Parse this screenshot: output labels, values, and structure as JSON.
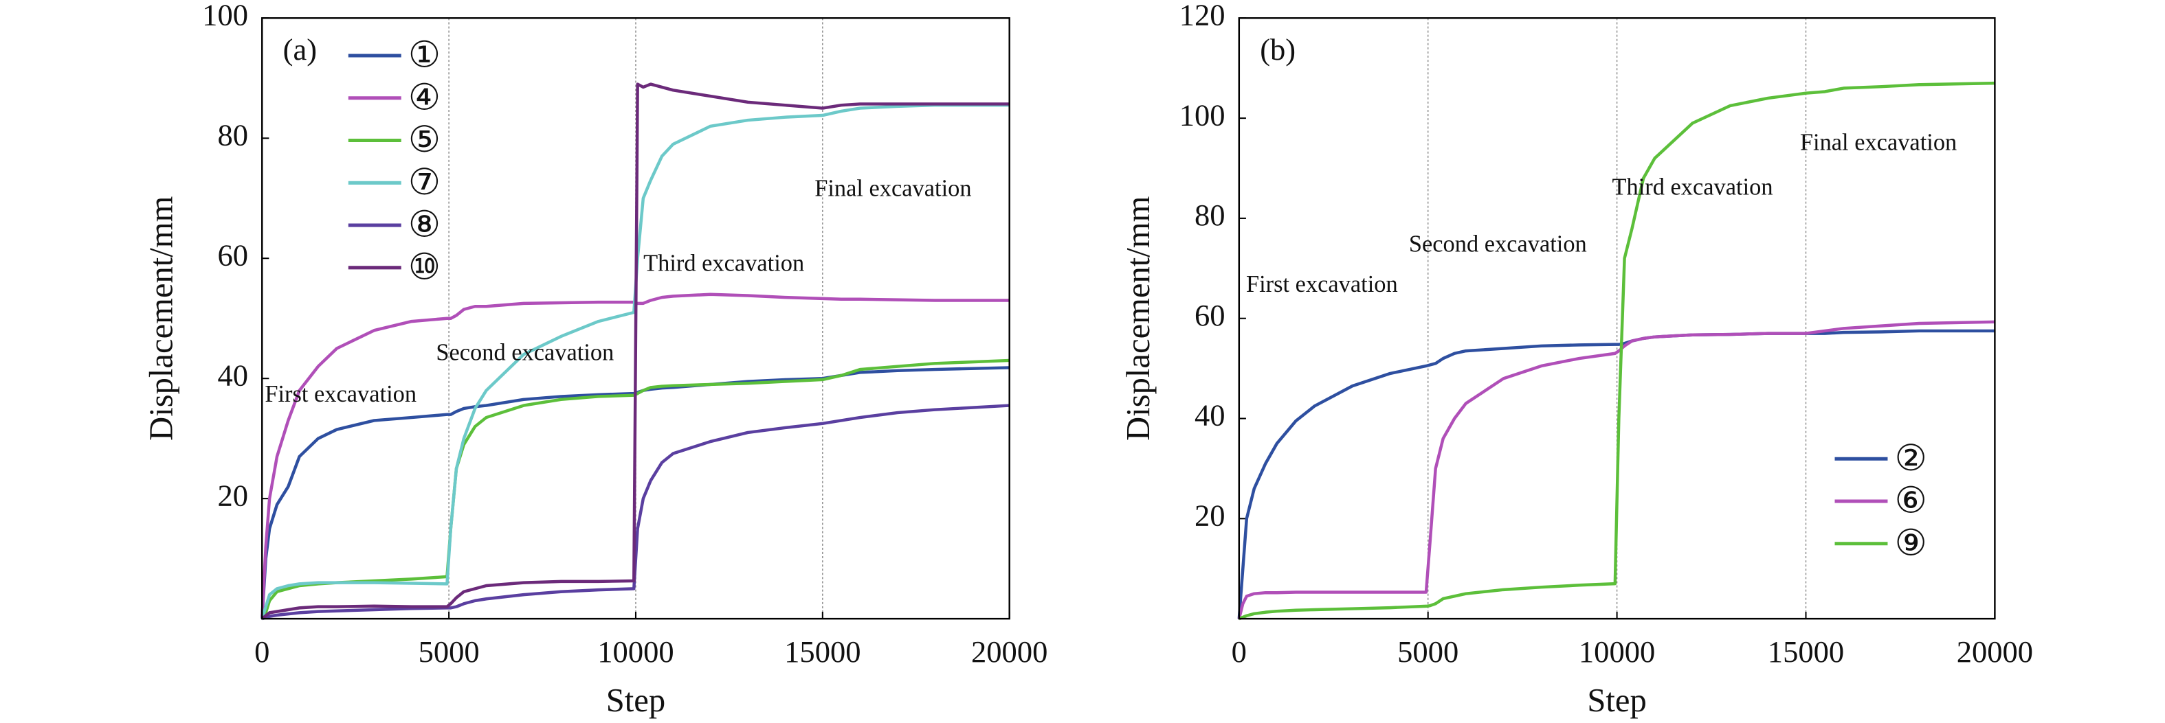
{
  "chart_data": [
    {
      "type": "line",
      "label": "(a)",
      "x_label": "Step",
      "y_label": "Displacement/mm",
      "xlim": [
        0,
        20000
      ],
      "xticks": [
        0,
        5000,
        10000,
        15000,
        20000
      ],
      "ylim": [
        0,
        100
      ],
      "yticks": [
        20,
        40,
        60,
        80,
        100
      ],
      "vlines": [
        5000,
        10000,
        15000
      ],
      "legend": "upper left",
      "annotations": [
        "First excavation",
        "Second excavation",
        "Third excavation",
        "Final excavation"
      ],
      "x": [
        0,
        100,
        200,
        400,
        700,
        1000,
        1500,
        2000,
        3000,
        4000,
        4950,
        5050,
        5200,
        5400,
        5700,
        6000,
        7000,
        8000,
        9000,
        9950,
        10050,
        10200,
        10400,
        10700,
        11000,
        12000,
        13000,
        14000,
        15000,
        15500,
        16000,
        17000,
        18000,
        20000
      ],
      "series": [
        {
          "name": "①",
          "color": "#2e4fa0",
          "values": [
            0,
            10,
            15,
            19,
            22,
            27,
            30,
            31.5,
            33,
            33.5,
            34,
            34,
            34.5,
            35,
            35.3,
            35.5,
            36.5,
            37,
            37.3,
            37.5,
            37.7,
            38,
            38.2,
            38.4,
            38.5,
            39,
            39.5,
            39.8,
            40,
            40.5,
            41,
            41.3,
            41.5,
            41.8
          ]
        },
        {
          "name": "④",
          "color": "#b04fb8",
          "values": [
            0,
            12,
            20,
            27,
            33,
            38,
            42,
            45,
            48,
            49.5,
            50,
            50,
            50.5,
            51.5,
            52,
            52,
            52.5,
            52.6,
            52.7,
            52.7,
            52.5,
            52.5,
            53,
            53.5,
            53.7,
            54,
            53.8,
            53.5,
            53.3,
            53.2,
            53.2,
            53.1,
            53,
            53
          ]
        },
        {
          "name": "⑤",
          "color": "#5cbf3a",
          "values": [
            0,
            1,
            3,
            4.5,
            5,
            5.5,
            5.8,
            6,
            6.3,
            6.6,
            7,
            15,
            25,
            29,
            32,
            33.5,
            35.5,
            36.5,
            37,
            37.2,
            37.5,
            38,
            38.5,
            38.7,
            38.8,
            39,
            39.2,
            39.5,
            39.8,
            40.5,
            41.5,
            42,
            42.5,
            43
          ]
        },
        {
          "name": "⑦",
          "color": "#6cc9c9",
          "values": [
            0,
            2,
            4,
            5,
            5.5,
            5.8,
            6,
            6,
            6,
            5.9,
            5.8,
            15,
            25,
            30,
            35,
            38,
            44,
            47,
            49.5,
            51,
            60,
            70,
            73,
            77,
            79,
            82,
            83,
            83.5,
            83.8,
            84.5,
            85,
            85.3,
            85.5,
            85.5
          ]
        },
        {
          "name": "⑧",
          "color": "#5a3fa0",
          "values": [
            0,
            0.2,
            0.4,
            0.6,
            0.8,
            1,
            1.2,
            1.3,
            1.5,
            1.7,
            1.8,
            1.8,
            2,
            2.5,
            3,
            3.3,
            4,
            4.5,
            4.8,
            5,
            15,
            20,
            23,
            26,
            27.5,
            29.5,
            31,
            31.8,
            32.5,
            33,
            33.5,
            34.3,
            34.8,
            35.5
          ]
        },
        {
          "name": "⑩",
          "color": "#6b2a7a",
          "values": [
            0,
            0.5,
            1,
            1.2,
            1.5,
            1.8,
            2,
            2,
            2.1,
            2,
            2,
            2.5,
            3.5,
            4.5,
            5,
            5.5,
            6,
            6.2,
            6.2,
            6.3,
            89,
            88.5,
            89,
            88.5,
            88,
            87,
            86,
            85.5,
            85,
            85.5,
            85.7,
            85.7,
            85.7,
            85.7
          ]
        }
      ]
    },
    {
      "type": "line",
      "label": "(b)",
      "x_label": "Step",
      "y_label": "Displacement/mm",
      "xlim": [
        0,
        20000
      ],
      "xticks": [
        0,
        5000,
        10000,
        15000,
        20000
      ],
      "ylim": [
        0,
        120
      ],
      "yticks": [
        20,
        40,
        60,
        80,
        100,
        120
      ],
      "vlines": [
        5000,
        10000,
        15000
      ],
      "legend": "lower right",
      "annotations": [
        "First excavation",
        "Second excavation",
        "Third excavation",
        "Final excavation"
      ],
      "x": [
        0,
        100,
        200,
        400,
        700,
        1000,
        1500,
        2000,
        3000,
        4000,
        4950,
        5050,
        5200,
        5400,
        5700,
        6000,
        7000,
        8000,
        9000,
        9950,
        10050,
        10200,
        10400,
        10700,
        11000,
        12000,
        13000,
        14000,
        15000,
        15500,
        16000,
        17000,
        18000,
        20000
      ],
      "series": [
        {
          "name": "②",
          "color": "#2e4fa0",
          "values": [
            0,
            10,
            20,
            26,
            31,
            35,
            39.5,
            42.5,
            46.5,
            49,
            50.5,
            50.7,
            51,
            52,
            53,
            53.5,
            54,
            54.5,
            54.7,
            54.8,
            54.8,
            55,
            55.5,
            56,
            56.3,
            56.7,
            56.8,
            57,
            57,
            57,
            57.2,
            57.3,
            57.5,
            57.5
          ]
        },
        {
          "name": "⑥",
          "color": "#b04fb8",
          "values": [
            0,
            3,
            4.5,
            5,
            5.2,
            5.2,
            5.3,
            5.3,
            5.3,
            5.3,
            5.3,
            15,
            30,
            36,
            40,
            43,
            48,
            50.5,
            52,
            53,
            53.5,
            54.5,
            55.5,
            56,
            56.3,
            56.7,
            56.8,
            57,
            57,
            57.5,
            58,
            58.5,
            59,
            59.3
          ]
        },
        {
          "name": "⑨",
          "color": "#5cbf3a",
          "values": [
            0,
            0.3,
            0.6,
            1,
            1.3,
            1.5,
            1.7,
            1.8,
            2,
            2.2,
            2.5,
            2.6,
            3,
            4,
            4.5,
            5,
            5.8,
            6.3,
            6.7,
            7,
            40,
            72,
            78,
            88,
            92,
            99,
            102.5,
            104,
            105,
            105.3,
            106,
            106.3,
            106.7,
            107
          ]
        }
      ]
    }
  ]
}
